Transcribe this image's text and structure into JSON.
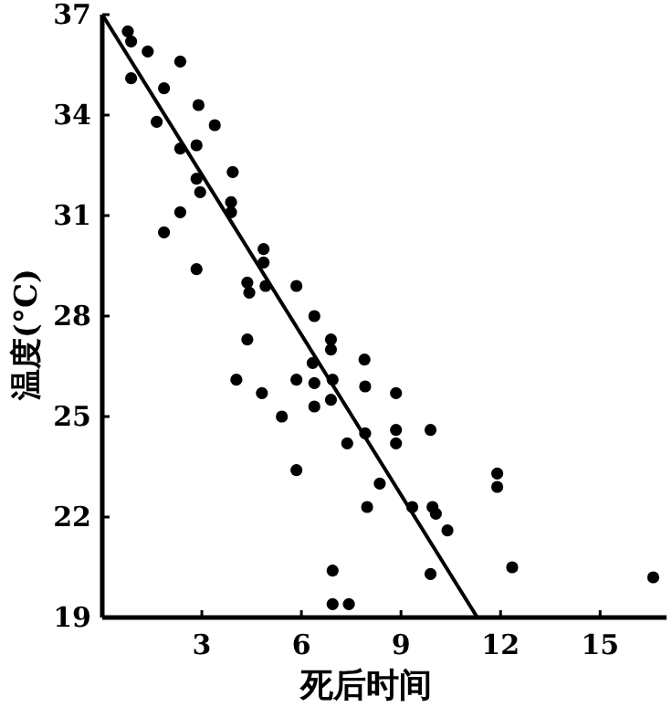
{
  "chart_data": {
    "type": "scatter",
    "xlabel": "死后时间",
    "ylabel": "温度(°C)",
    "xlim": [
      0,
      17
    ],
    "ylim": [
      19,
      37
    ],
    "xticks": [
      3,
      6,
      9,
      12,
      15
    ],
    "yticks": [
      19,
      22,
      25,
      28,
      31,
      34,
      37
    ],
    "grid": false,
    "series": [
      {
        "marker": "circle",
        "color": "#000000",
        "x": [
          0.77,
          0.87,
          1.37,
          2.35,
          0.87,
          1.86,
          1.64,
          2.9,
          3.39,
          2.84,
          2.35,
          3.93,
          2.84,
          2.95,
          3.88,
          3.88,
          2.35,
          1.86,
          4.86,
          4.86,
          2.84,
          4.37,
          4.43,
          4.92,
          5.85,
          6.39,
          6.89,
          6.89,
          4.37,
          7.9,
          4.04,
          4.81,
          5.85,
          6.39,
          6.94,
          7.92,
          6.34,
          6.39,
          6.89,
          5.41,
          8.85,
          7.92,
          8.85,
          8.85,
          9.89,
          7.38,
          5.85,
          8.36,
          7.98,
          9.34,
          9.95,
          10.05,
          10.4,
          11.9,
          11.9,
          6.94,
          9.89,
          12.35,
          16.6,
          6.94,
          7.43
        ],
        "values": [
          36.5,
          36.2,
          35.9,
          35.6,
          35.1,
          34.8,
          33.8,
          34.3,
          33.7,
          33.1,
          33.0,
          32.3,
          32.1,
          31.7,
          31.4,
          31.1,
          31.1,
          30.5,
          30.0,
          29.6,
          29.4,
          29.0,
          28.7,
          28.9,
          28.9,
          28.0,
          27.3,
          27.0,
          27.3,
          26.7,
          26.1,
          25.7,
          26.1,
          26.0,
          26.1,
          25.9,
          26.6,
          25.3,
          25.5,
          25.0,
          25.7,
          24.5,
          24.6,
          24.2,
          24.6,
          24.2,
          23.4,
          23.0,
          22.3,
          22.3,
          22.3,
          22.1,
          21.6,
          23.3,
          22.9,
          20.4,
          20.3,
          20.5,
          20.2,
          19.4,
          19.4
        ]
      },
      {
        "type": "line",
        "color": "#000000",
        "x": [
          0,
          11.3
        ],
        "values": [
          37,
          19
        ]
      }
    ]
  }
}
